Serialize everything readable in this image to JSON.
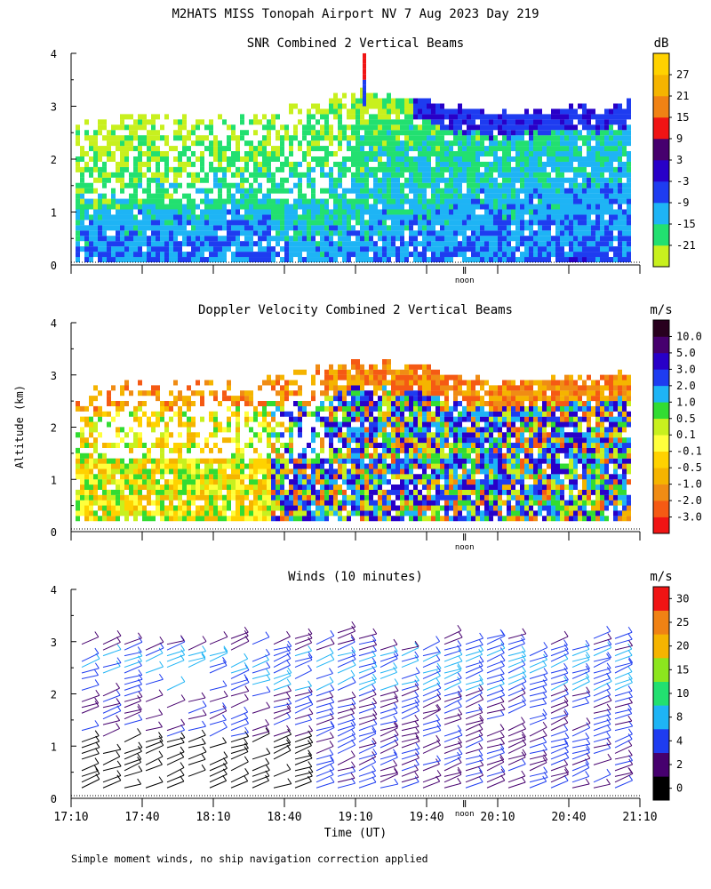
{
  "figure": {
    "title": "M2HATS MISS Tonopah Airport NV   7 Aug 2023 Day 219",
    "ylabel": "Altitude (km)",
    "xlabel": "Time (UT)",
    "footnote": "Simple moment winds, no ship navigation correction applied",
    "time_ticks": [
      "17:10",
      "17:40",
      "18:10",
      "18:40",
      "19:10",
      "19:40",
      "20:10",
      "20:40",
      "21:10"
    ],
    "noon_label": "noon"
  },
  "chart_data": [
    {
      "type": "heatmap",
      "title": "SNR Combined 2 Vertical Beams",
      "y_ticks": [
        "0",
        "1",
        "2",
        "3",
        "4"
      ],
      "ylim": [
        0,
        4
      ],
      "colorbar": {
        "unit": "dB",
        "labels": [
          "-21",
          "-15",
          "-9",
          "-3",
          "3",
          "9",
          "15",
          "21",
          "27"
        ],
        "colors": [
          "#c8f01e",
          "#22e070",
          "#1eb4f5",
          "#1e3cf0",
          "#2800c8",
          "#46006e",
          "#f01414",
          "#f08214",
          "#f5b400",
          "#ffd200"
        ]
      },
      "echo_top_km": [
        2.7,
        2.8,
        2.8,
        2.9,
        3.2,
        3.1,
        2.8,
        2.9,
        3.0
      ]
    },
    {
      "type": "heatmap",
      "title": "Doppler Velocity Combined 2 Vertical Beams",
      "y_ticks": [
        "0",
        "1",
        "2",
        "3",
        "4"
      ],
      "ylim": [
        0,
        4
      ],
      "colorbar": {
        "unit": "m/s",
        "labels": [
          "-3.0",
          "-2.0",
          "-1.0",
          "-0.5",
          "-0.1",
          "0.1",
          "0.5",
          "1.0",
          "2.0",
          "3.0",
          "5.0",
          "10.0"
        ],
        "colors": [
          "#f01414",
          "#f55a14",
          "#f08c14",
          "#f5b400",
          "#ffd200",
          "#ffff3c",
          "#c8f01e",
          "#32dc32",
          "#1eb4f5",
          "#1e3cf0",
          "#2800c8",
          "#46006e",
          "#28001e"
        ]
      }
    },
    {
      "type": "scatter",
      "title": "Winds (10 minutes)",
      "y_ticks": [
        "0",
        "1",
        "2",
        "3",
        "4"
      ],
      "ylim": [
        0,
        4
      ],
      "colorbar": {
        "unit": "m/s",
        "labels": [
          "0",
          "2",
          "4",
          "8",
          "10",
          "15",
          "20",
          "25",
          "30"
        ],
        "colors": [
          "#000000",
          "#46006e",
          "#1e3cf0",
          "#1eb4f5",
          "#22e070",
          "#8ce61e",
          "#f5b400",
          "#f08214",
          "#f01414"
        ]
      }
    }
  ]
}
